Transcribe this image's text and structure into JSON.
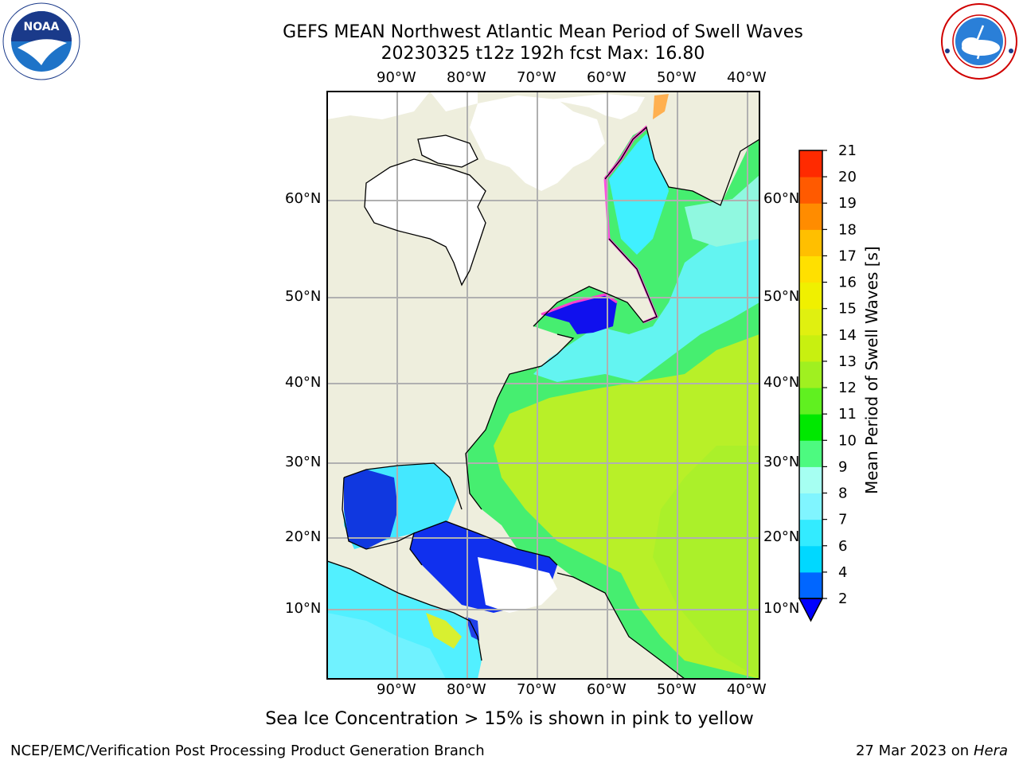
{
  "header": {
    "title_line1": "GEFS MEAN Northwest Atlantic Mean Period of Swell Waves",
    "title_line2": "20230325 t12z 192h fcst   Max: 16.80"
  },
  "logos": {
    "left": {
      "name": "NOAA",
      "text": "NOAA",
      "ring_text": "NATIONAL OCEANIC AND ATMOSPHERIC ADMINISTRATION · U.S. DEPARTMENT OF COMMERCE"
    },
    "right": {
      "name": "National Weather Service",
      "ring_text": "NATIONAL WEATHER SERVICE"
    }
  },
  "map": {
    "lon_ticks": [
      "90°W",
      "80°W",
      "70°W",
      "60°W",
      "50°W",
      "40°W"
    ],
    "lat_ticks_left": [
      "60°N",
      "50°N",
      "40°N",
      "30°N",
      "20°N",
      "10°N"
    ],
    "lat_ticks_right": [
      "60°N",
      "50°N",
      "40°N",
      "30°N",
      "20°N",
      "10°N"
    ]
  },
  "colorbar": {
    "label": "Mean Period of Swell Waves [s]",
    "ticks": [
      "2",
      "4",
      "6",
      "7",
      "8",
      "9",
      "10",
      "11",
      "12",
      "13",
      "14",
      "15",
      "16",
      "17",
      "18",
      "19",
      "20",
      "21"
    ],
    "colors": [
      "#0066ff",
      "#00d8ff",
      "#33ebff",
      "#80f5ff",
      "#a6fff2",
      "#4dfa80",
      "#00e800",
      "#60f020",
      "#a0f020",
      "#c8f010",
      "#e0f010",
      "#f0f000",
      "#ffe000",
      "#ffbf00",
      "#ff8c00",
      "#ff5a00",
      "#ff2a00"
    ],
    "under_color": "#0000ff"
  },
  "caption": "Sea Ice Concentration > 15% is shown in pink to yellow",
  "footer": {
    "left": "NCEP/EMC/Verification Post Processing Product Generation Branch",
    "right_date": "27 Mar 2023 on",
    "right_host": "Hera"
  }
}
